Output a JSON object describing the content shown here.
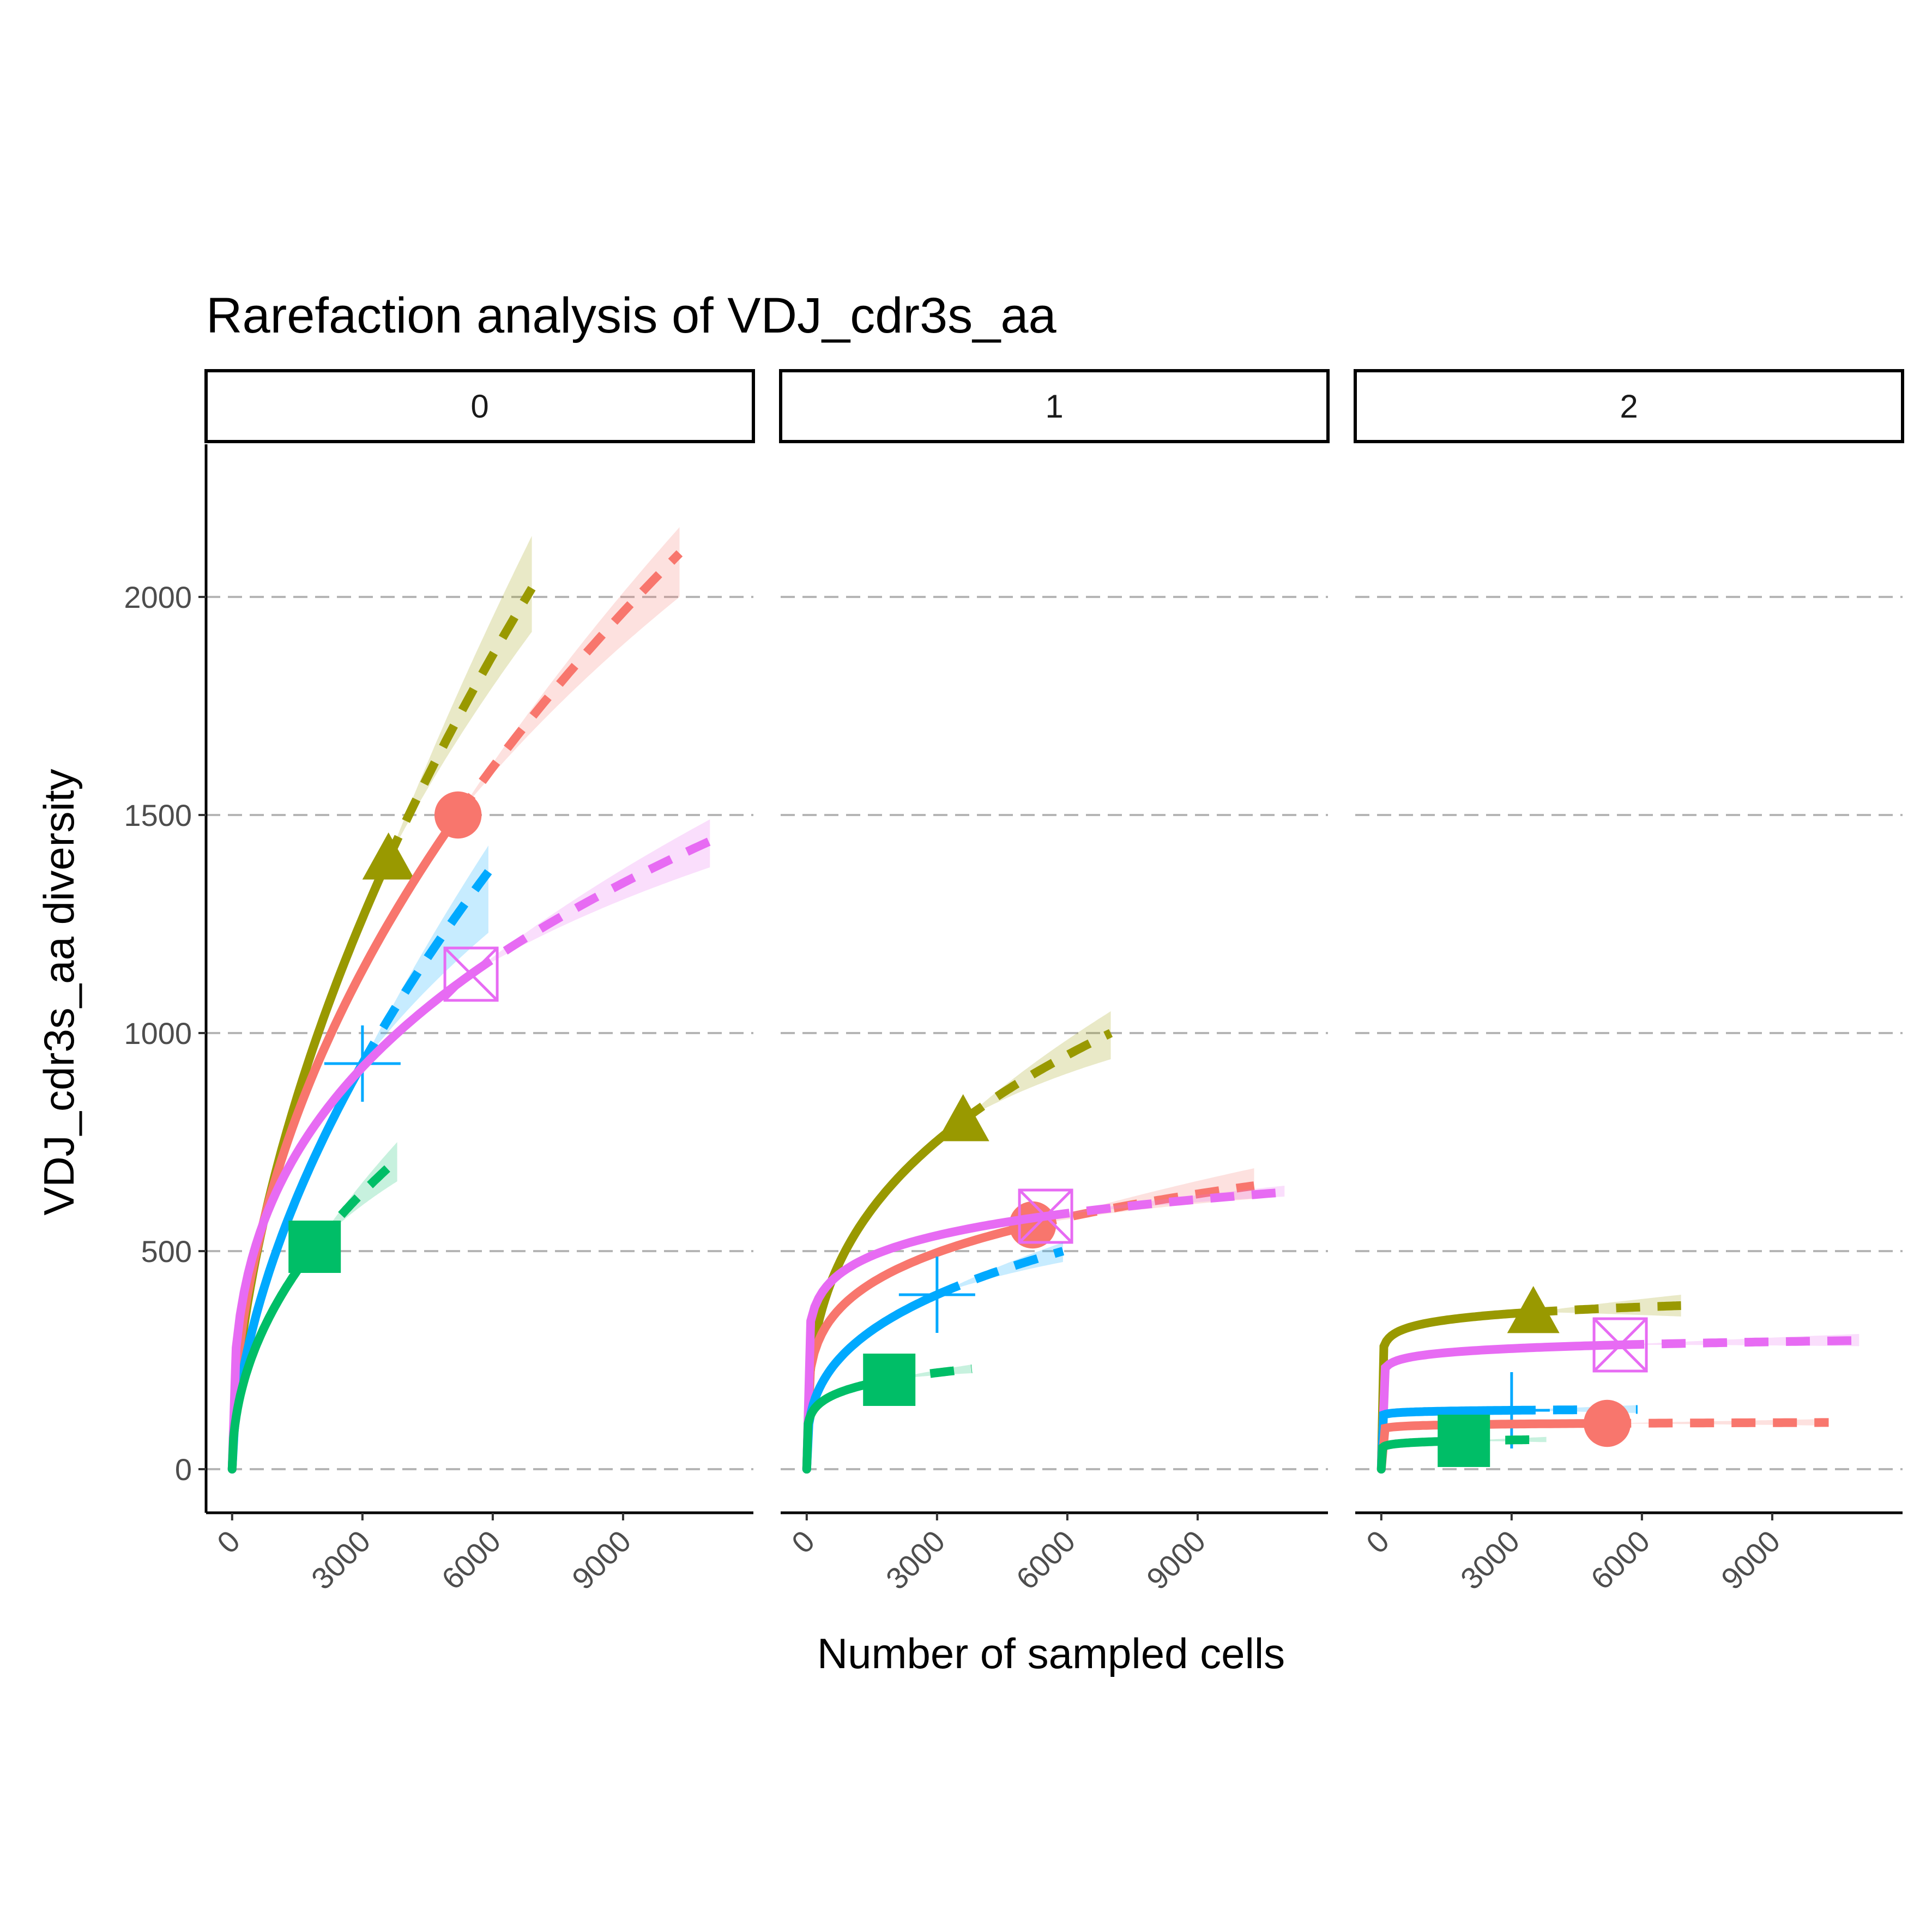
{
  "chart_data": {
    "type": "line",
    "title": "Rarefaction analysis of VDJ_cdr3s_aa",
    "xlabel": "Number of sampled cells",
    "ylabel": "VDJ_cdr3s_aa diversity",
    "xlim": [
      -600,
      12000
    ],
    "ylim": [
      -100,
      2350
    ],
    "x_ticks": [
      0,
      3000,
      6000,
      9000
    ],
    "x_tick_labels": [
      "0",
      "3000",
      "6000",
      "9000"
    ],
    "y_ticks": [
      0,
      500,
      1000,
      1500,
      2000
    ],
    "y_tick_labels": [
      "0",
      "500",
      "1000",
      "1500",
      "2000"
    ],
    "grid": "horizontal dashed",
    "panels": [
      {
        "label": "0",
        "series": [
          {
            "color": "#999900",
            "marker": "triangle",
            "n": 3600,
            "d": 1400,
            "xmax": 6900,
            "dmax": 2020,
            "hi": 2140,
            "lo": 1920
          },
          {
            "color": "#F8766D",
            "marker": "circle",
            "n": 5200,
            "d": 1500,
            "xmax": 10300,
            "dmax": 2100,
            "hi": 2160,
            "lo": 2000
          },
          {
            "color": "#00A9FF",
            "marker": "plus",
            "n": 3000,
            "d": 930,
            "xmax": 5900,
            "dmax": 1370,
            "hi": 1430,
            "lo": 1230
          },
          {
            "color": "#E76BF3",
            "marker": "square-cross",
            "n": 5500,
            "d": 1135,
            "xmax": 11000,
            "dmax": 1440,
            "hi": 1490,
            "lo": 1380
          },
          {
            "color": "#00BE67",
            "marker": "square",
            "n": 1900,
            "d": 510,
            "xmax": 3800,
            "dmax": 710,
            "hi": 750,
            "lo": 660
          }
        ]
      },
      {
        "label": "1",
        "series": [
          {
            "color": "#999900",
            "marker": "triangle",
            "n": 3600,
            "d": 800,
            "xmax": 7000,
            "dmax": 1000,
            "hi": 1050,
            "lo": 940
          },
          {
            "color": "#F8766D",
            "marker": "circle",
            "n": 5200,
            "d": 560,
            "xmax": 10300,
            "dmax": 650,
            "hi": 690,
            "lo": 620
          },
          {
            "color": "#E76BF3",
            "marker": "square-cross",
            "n": 5500,
            "d": 580,
            "xmax": 11000,
            "dmax": 635,
            "hi": 650,
            "lo": 625
          },
          {
            "color": "#00A9FF",
            "marker": "plus",
            "n": 3000,
            "d": 400,
            "xmax": 5900,
            "dmax": 500,
            "hi": 520,
            "lo": 475
          },
          {
            "color": "#00BE67",
            "marker": "square",
            "n": 1900,
            "d": 205,
            "xmax": 3800,
            "dmax": 230,
            "hi": 240,
            "lo": 220
          }
        ]
      },
      {
        "label": "2",
        "series": [
          {
            "color": "#999900",
            "marker": "triangle",
            "n": 3500,
            "d": 360,
            "xmax": 6900,
            "dmax": 375,
            "hi": 400,
            "lo": 350
          },
          {
            "color": "#E76BF3",
            "marker": "square-cross",
            "n": 5500,
            "d": 285,
            "xmax": 11000,
            "dmax": 295,
            "hi": 310,
            "lo": 282
          },
          {
            "color": "#00A9FF",
            "marker": "plus",
            "n": 3000,
            "d": 135,
            "xmax": 5900,
            "dmax": 135,
            "hi": 145,
            "lo": 127
          },
          {
            "color": "#F8766D",
            "marker": "circle",
            "n": 5200,
            "d": 105,
            "xmax": 10300,
            "dmax": 107,
            "hi": 115,
            "lo": 100
          },
          {
            "color": "#00BE67",
            "marker": "square",
            "n": 1900,
            "d": 65,
            "xmax": 3800,
            "dmax": 68,
            "hi": 74,
            "lo": 62
          }
        ]
      }
    ]
  }
}
